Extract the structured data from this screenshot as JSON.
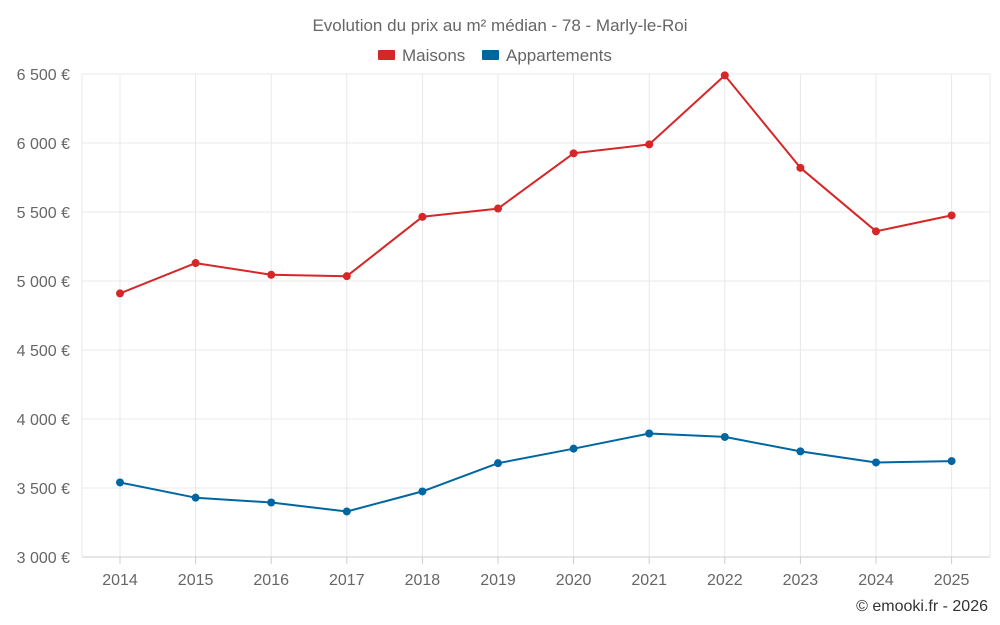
{
  "chart_data": {
    "type": "line",
    "title": "Evolution du prix au m² médian - 78 - Marly-le-Roi",
    "xlabel": "",
    "ylabel": "",
    "categories": [
      "2014",
      "2015",
      "2016",
      "2017",
      "2018",
      "2019",
      "2020",
      "2021",
      "2022",
      "2023",
      "2024",
      "2025"
    ],
    "ylim": [
      3000,
      6500
    ],
    "yticks": [
      3000,
      3500,
      4000,
      4500,
      5000,
      5500,
      6000,
      6500
    ],
    "ytick_labels": [
      "3 000 €",
      "3 500 €",
      "4 000 €",
      "4 500 €",
      "5 000 €",
      "5 500 €",
      "6 000 €",
      "6 500 €"
    ],
    "grid": true,
    "legend_position": "top-center",
    "series": [
      {
        "name": "Maisons",
        "color": "#d62728",
        "values": [
          4910,
          5130,
          5045,
          5035,
          5465,
          5525,
          5925,
          5990,
          6490,
          5820,
          5360,
          5475
        ]
      },
      {
        "name": "Appartements",
        "color": "#0066a1",
        "values": [
          3540,
          3430,
          3395,
          3330,
          3475,
          3680,
          3785,
          3895,
          3870,
          3765,
          3685,
          3695
        ]
      }
    ],
    "credit": "© emooki.fr - 2026"
  }
}
